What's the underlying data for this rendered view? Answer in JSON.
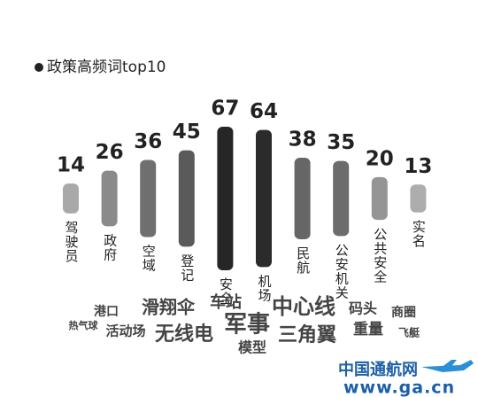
{
  "chart_data": {
    "type": "bar",
    "title": "政策高频词top10",
    "categories": [
      "驾驶员",
      "政府",
      "空域",
      "登记",
      "安全",
      "机场",
      "民航",
      "公安机关",
      "公共安全",
      "实名"
    ],
    "values": [
      14,
      26,
      36,
      45,
      67,
      64,
      38,
      35,
      20,
      13
    ],
    "colors": [
      "#a9a9a9",
      "#8a8a8a",
      "#6f6f6f",
      "#5a5a5a",
      "#262626",
      "#2b2b2b",
      "#666666",
      "#6c6c6c",
      "#959595",
      "#adadad"
    ]
  },
  "word_cloud": [
    "港口",
    "滑翔伞",
    "车站",
    "中心线",
    "码头",
    "商圈",
    "热气球",
    "活动场",
    "无线电",
    "军事",
    "三角翼",
    "重量",
    "飞艇",
    "模型"
  ],
  "logo": {
    "name": "中国通航网",
    "url": "www.ga.cn"
  }
}
